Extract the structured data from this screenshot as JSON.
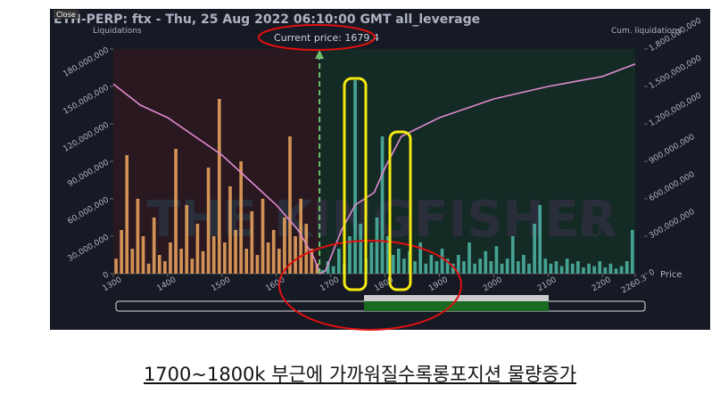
{
  "close_button": "Close",
  "caption": "1700~1800k 부근에 가까워질수록롱포지션 물량증가",
  "chart_data": {
    "type": "bar",
    "title": "ETH-PERP: ftx - Thu, 25 Aug 2022 06:10:00 GMT all_leverage",
    "y_label": "Liquidations",
    "y2_label": "Cum. liquidations",
    "x_label": "Price",
    "annotation": "Current price: 1679.4",
    "current_price": 1679.4,
    "watermark": "THE KINGFISHER",
    "watermark_suffix": ".io",
    "xlim": [
      1300,
      2260.3
    ],
    "xticks": [
      1300,
      1400,
      1500,
      1600,
      1700,
      1800,
      1900,
      2000,
      2100,
      2200,
      2260.3
    ],
    "ylim": [
      0,
      180000000
    ],
    "yticks": [
      0,
      {
        "value": 30000000,
        "label": "30,000,000"
      },
      {
        "value": 60000000,
        "label": "60,000,000"
      },
      {
        "value": 90000000,
        "label": "90,000,000"
      },
      {
        "value": 120000000,
        "label": "120,000,000"
      },
      {
        "value": 150000000,
        "label": "150,000,000"
      },
      {
        "value": 180000000,
        "label": "180,000,000"
      }
    ],
    "y2lim": [
      0,
      1800000000
    ],
    "y2ticks": [
      0,
      {
        "value": 300000000,
        "label": "300,000,000"
      },
      {
        "value": 600000000,
        "label": "600,000,000"
      },
      {
        "value": 900000000,
        "label": "900,000,000"
      },
      {
        "value": 1200000000,
        "label": "1,200,000,000"
      },
      {
        "value": 1500000000,
        "label": "1,500,000,000"
      },
      {
        "value": 1800000000,
        "label": "1,800,000,000"
      }
    ],
    "series": [
      {
        "color": "#f0a860",
        "x": [
          1305,
          1315,
          1325,
          1335,
          1345,
          1355,
          1365,
          1375,
          1385,
          1395,
          1405,
          1415,
          1425,
          1435,
          1445,
          1455,
          1465,
          1475,
          1485,
          1495,
          1505,
          1515,
          1525,
          1535,
          1545,
          1555,
          1565,
          1575,
          1585,
          1595,
          1605,
          1615,
          1625,
          1635,
          1645,
          1655,
          1665,
          1675
        ],
        "values": [
          12000000,
          35000000,
          95000000,
          20000000,
          60000000,
          30000000,
          8000000,
          45000000,
          15000000,
          10000000,
          25000000,
          100000000,
          20000000,
          55000000,
          12000000,
          40000000,
          18000000,
          85000000,
          30000000,
          140000000,
          25000000,
          70000000,
          35000000,
          90000000,
          20000000,
          50000000,
          15000000,
          60000000,
          25000000,
          35000000,
          20000000,
          45000000,
          110000000,
          30000000,
          60000000,
          40000000,
          20000000,
          8000000
        ]
      },
      {
        "color": "#4fb8a8",
        "x": [
          1685,
          1695,
          1705,
          1715,
          1725,
          1735,
          1745,
          1755,
          1765,
          1775,
          1785,
          1795,
          1805,
          1815,
          1825,
          1835,
          1845,
          1855,
          1865,
          1875,
          1885,
          1895,
          1905,
          1915,
          1925,
          1935,
          1945,
          1955,
          1965,
          1975,
          1985,
          1995,
          2005,
          2015,
          2025,
          2035,
          2045,
          2055,
          2065,
          2075,
          2085,
          2095,
          2105,
          2115,
          2125,
          2135,
          2145,
          2155,
          2165,
          2175,
          2185,
          2195,
          2205,
          2215,
          2225,
          2235,
          2245,
          2255
        ],
        "values": [
          3000000,
          10000000,
          6000000,
          20000000,
          8000000,
          30000000,
          155000000,
          40000000,
          12000000,
          25000000,
          45000000,
          110000000,
          30000000,
          15000000,
          20000000,
          12000000,
          18000000,
          10000000,
          25000000,
          8000000,
          15000000,
          10000000,
          20000000,
          12000000,
          8000000,
          15000000,
          10000000,
          25000000,
          8000000,
          12000000,
          18000000,
          10000000,
          22000000,
          8000000,
          12000000,
          30000000,
          10000000,
          15000000,
          8000000,
          40000000,
          55000000,
          12000000,
          8000000,
          10000000,
          6000000,
          12000000,
          8000000,
          10000000,
          5000000,
          8000000,
          6000000,
          10000000,
          5000000,
          8000000,
          4000000,
          6000000,
          10000000,
          35000000
        ]
      },
      {
        "type": "line",
        "axis": "y2",
        "color": "#e08ad0",
        "x": [
          1300,
          1350,
          1400,
          1450,
          1500,
          1550,
          1600,
          1640,
          1670,
          1680,
          1690,
          1720,
          1745,
          1780,
          1800,
          1830,
          1900,
          2000,
          2100,
          2200,
          2260.3
        ],
        "values": [
          1520000000,
          1350000000,
          1250000000,
          1100000000,
          950000000,
          750000000,
          550000000,
          350000000,
          120000000,
          0,
          20000000,
          350000000,
          550000000,
          650000000,
          850000000,
          1100000000,
          1250000000,
          1400000000,
          1500000000,
          1580000000,
          1680000000
        ]
      }
    ]
  }
}
